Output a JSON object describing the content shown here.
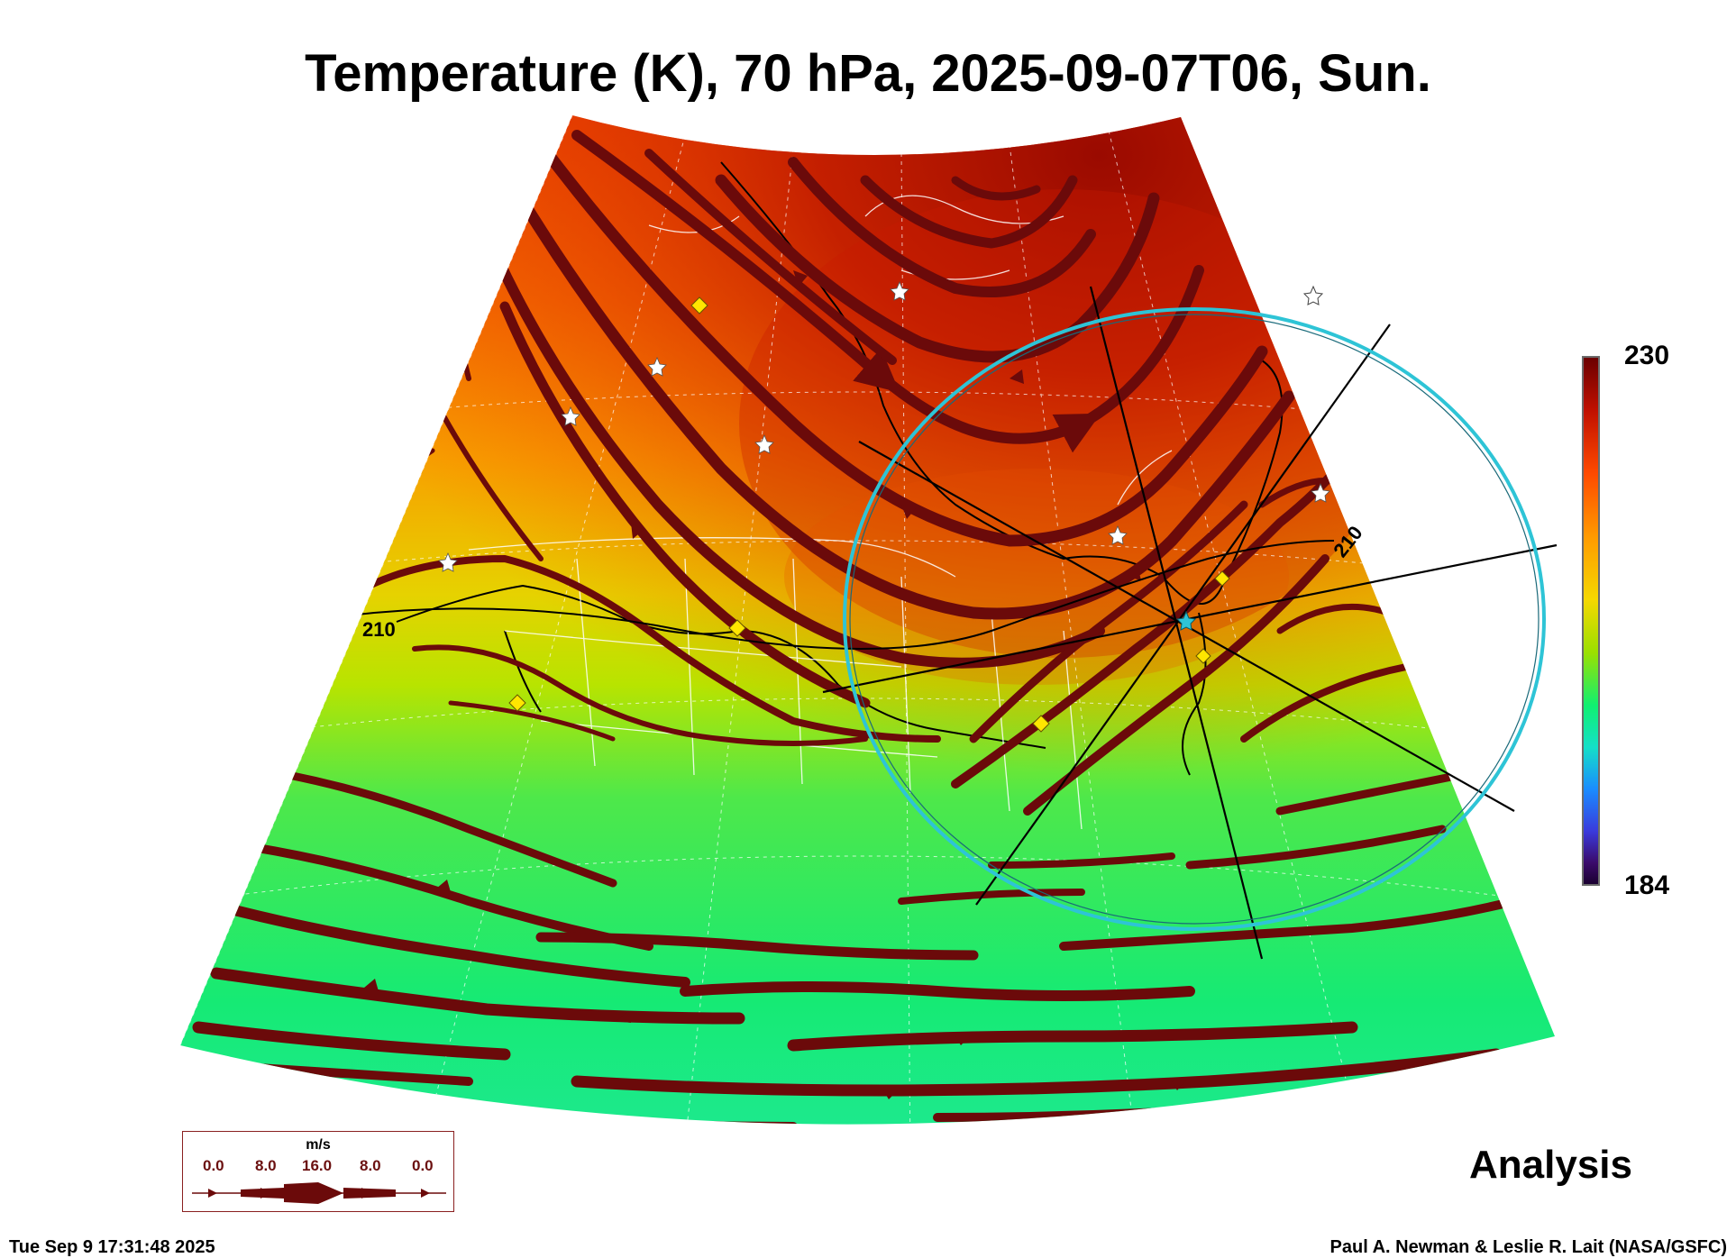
{
  "title": "Temperature (K), 70 hPa, 2025-09-07T06, Sun.",
  "colorbar": {
    "max_label": "230",
    "min_label": "184",
    "max": 230,
    "min": 184
  },
  "contour_label": "210",
  "label": "Analysis",
  "timestamp": "Tue Sep  9 17:31:48 2025",
  "credit": "Paul A. Newman & Leslie R. Lait (NASA/GSFC)",
  "legend": {
    "unit": "m/s",
    "ticks": [
      "0.0",
      "8.0",
      "16.0",
      "8.0",
      "0.0"
    ]
  },
  "colors": {
    "streamline": "#6b0a0a",
    "circle": "#2ec4d6",
    "marker_star": "#ffffff",
    "marker_diamond": "#ffe600"
  }
}
